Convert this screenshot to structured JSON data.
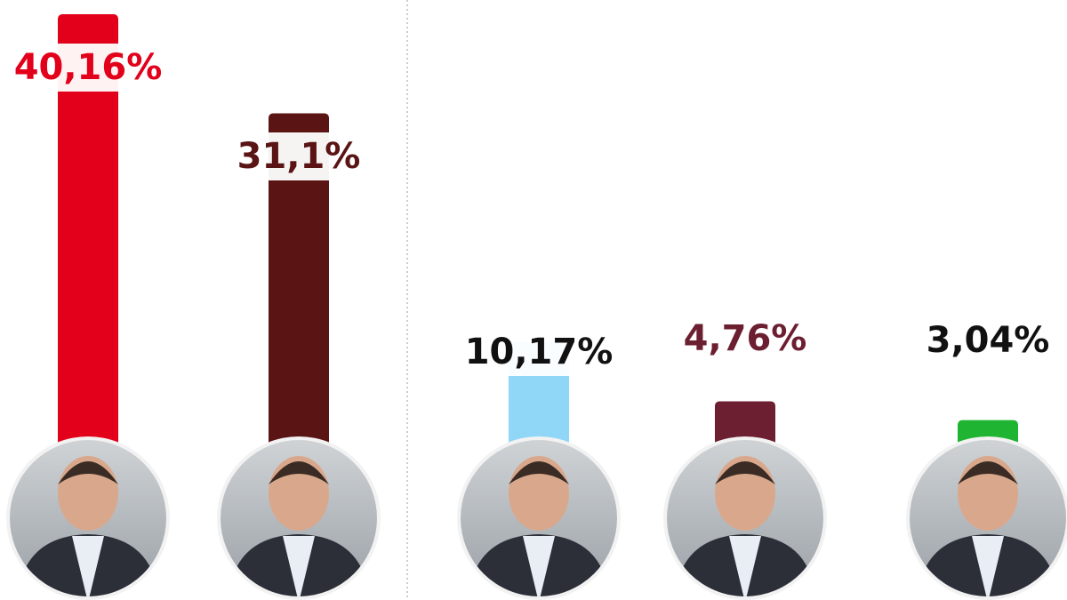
{
  "chart_data": {
    "type": "bar",
    "categories": [
      null,
      null,
      null,
      null,
      null
    ],
    "values": [
      40.16,
      31.1,
      10.17,
      4.76,
      3.04
    ],
    "value_labels": [
      "40,16%",
      "31,1%",
      "10,17%",
      "4,76%",
      "3,04%"
    ],
    "colors": [
      "#e2001a",
      "#5a1414",
      "#8fd6f7",
      "#6b1f30",
      "#1fb431"
    ],
    "label_colors": [
      "#e2001a",
      "#5a1414",
      "#111111",
      "#6b1f30",
      "#111111"
    ]
  }
}
